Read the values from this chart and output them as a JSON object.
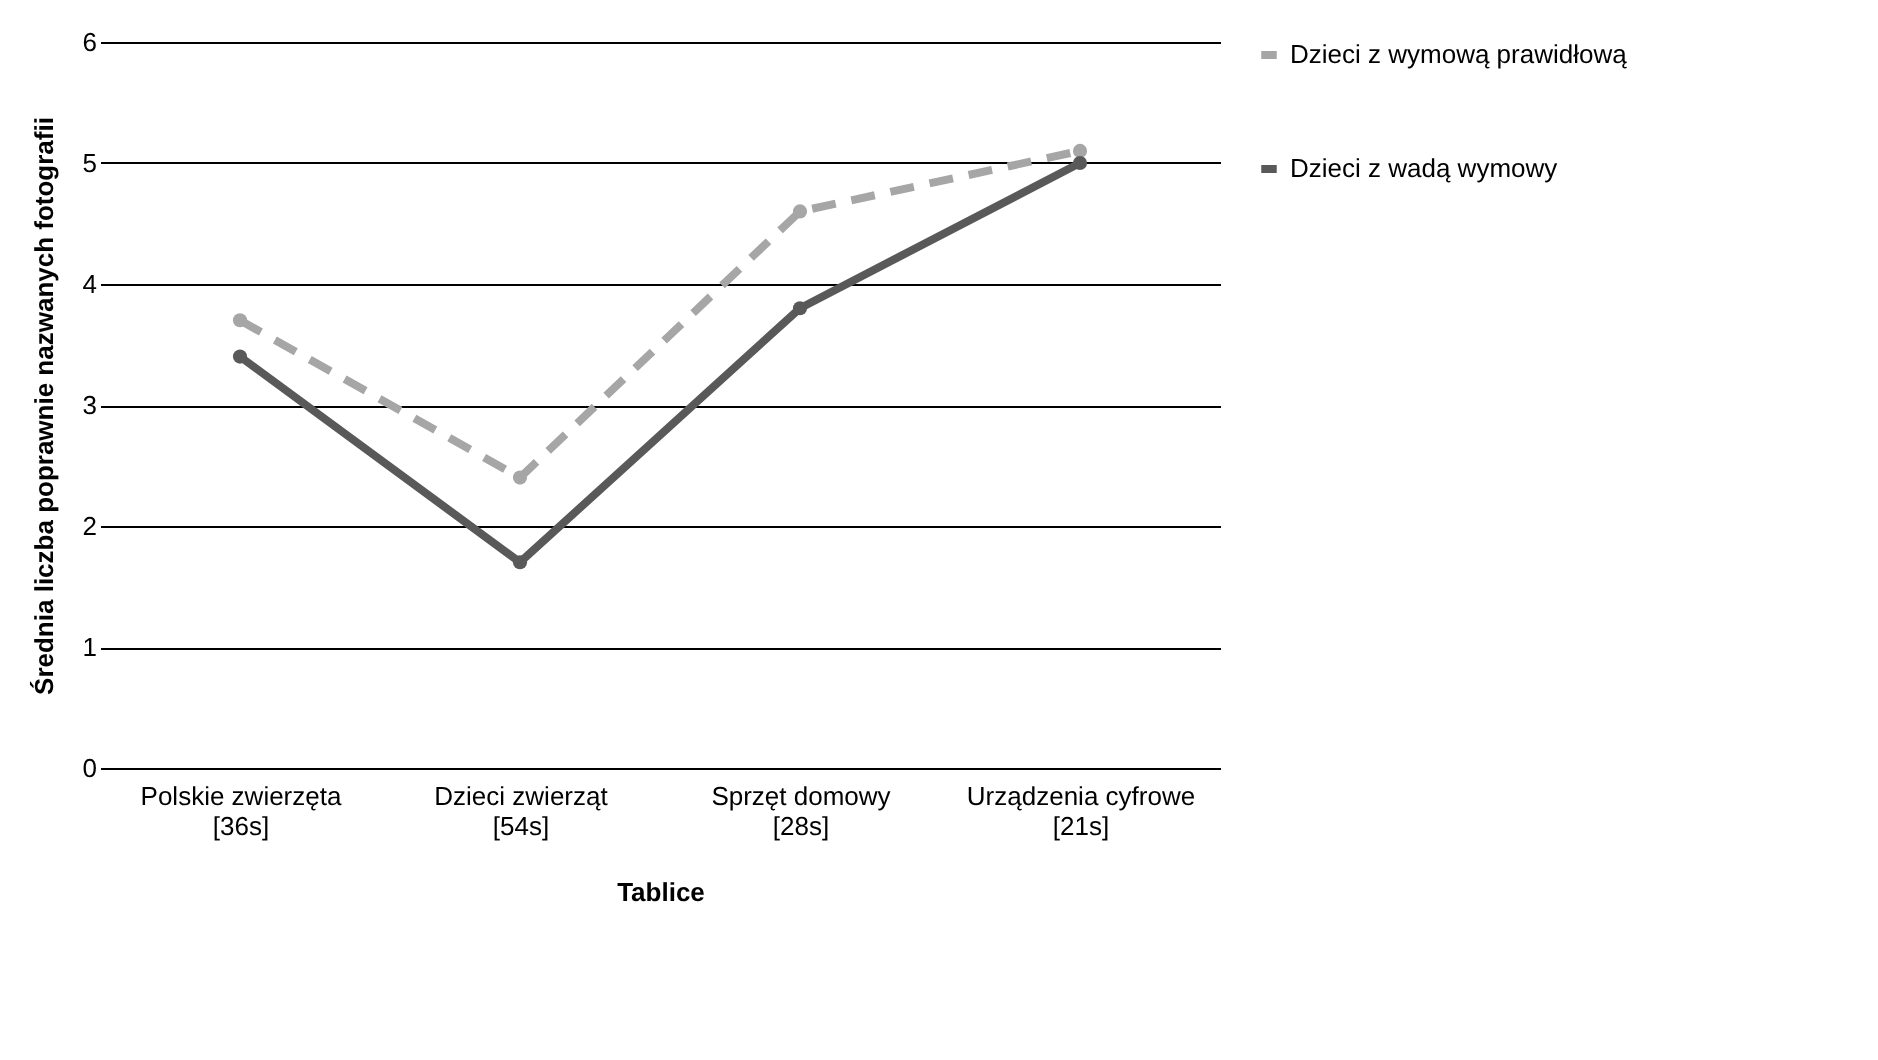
{
  "chart_data": {
    "type": "line",
    "xlabel": "Tablice",
    "ylabel": "Średnia  liczba poprawnie nazwanych fotografii",
    "categories": [
      "Polskie zwierzęta [36s]",
      "Dzieci zwierząt [54s]",
      "Sprzęt domowy [28s]",
      "Urządzenia cyfrowe [21s]"
    ],
    "series": [
      {
        "name": "Dzieci z wymową prawidłową",
        "color": "#a6a6a6",
        "line_style": "dashed",
        "values": [
          3.7,
          2.4,
          4.6,
          5.1
        ]
      },
      {
        "name": "Dzieci z wadą wymowy",
        "color": "#595959",
        "line_style": "solid",
        "values": [
          3.4,
          1.7,
          3.8,
          5.0
        ]
      }
    ],
    "ylim": [
      0,
      6
    ],
    "yticks": [
      0,
      1,
      2,
      3,
      4,
      5,
      6
    ],
    "grid": "y",
    "legend": "right",
    "marker": "circle"
  }
}
